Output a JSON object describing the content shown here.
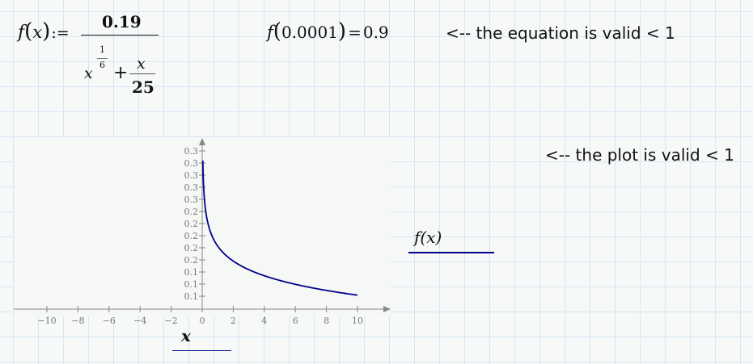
{
  "definition": {
    "lhs_func": "f",
    "lhs_var": "x",
    "assign_op": ":=",
    "numerator": "0.19",
    "base": "x",
    "exp_num": "1",
    "exp_den": "6",
    "plus": "+",
    "frac_num": "x",
    "frac_den": "25"
  },
  "evaluation": {
    "func": "f",
    "arg": "0.0001",
    "eq": "=",
    "result": "0.9"
  },
  "notes": {
    "equation_note": "<-- the equation is valid < 1",
    "plot_note": "<-- the plot is valid < 1"
  },
  "chart_data": {
    "type": "line",
    "function": "0.19/(x^(1/6)+x/25)",
    "x_range_plotted": [
      0.04,
      10
    ],
    "xlim": [
      -12,
      12
    ],
    "ylim": [
      0.08,
      0.35
    ],
    "x_ticks": [
      -10,
      -8,
      -6,
      -4,
      -2,
      0,
      2,
      4,
      6,
      8,
      10
    ],
    "x_tick_labels": [
      "−10",
      "−8",
      "−6",
      "−4",
      "−2",
      "0",
      "2",
      "4",
      "6",
      "8",
      "10"
    ],
    "y_ticks": [
      0.1,
      0.12,
      0.14,
      0.16,
      0.18,
      0.2,
      0.22,
      0.24,
      0.26,
      0.28,
      0.3,
      0.32,
      0.34
    ],
    "y_tick_labels": [
      "0.1",
      "0.1",
      "0.1",
      "0.2",
      "0.2",
      "0.2",
      "0.2",
      "0.2",
      "0.3",
      "0.3",
      "0.3",
      "0.3",
      "0.3"
    ],
    "xlabel": "x",
    "trace_label": "f(x)",
    "trace_color": "#00008b",
    "grid": false
  }
}
